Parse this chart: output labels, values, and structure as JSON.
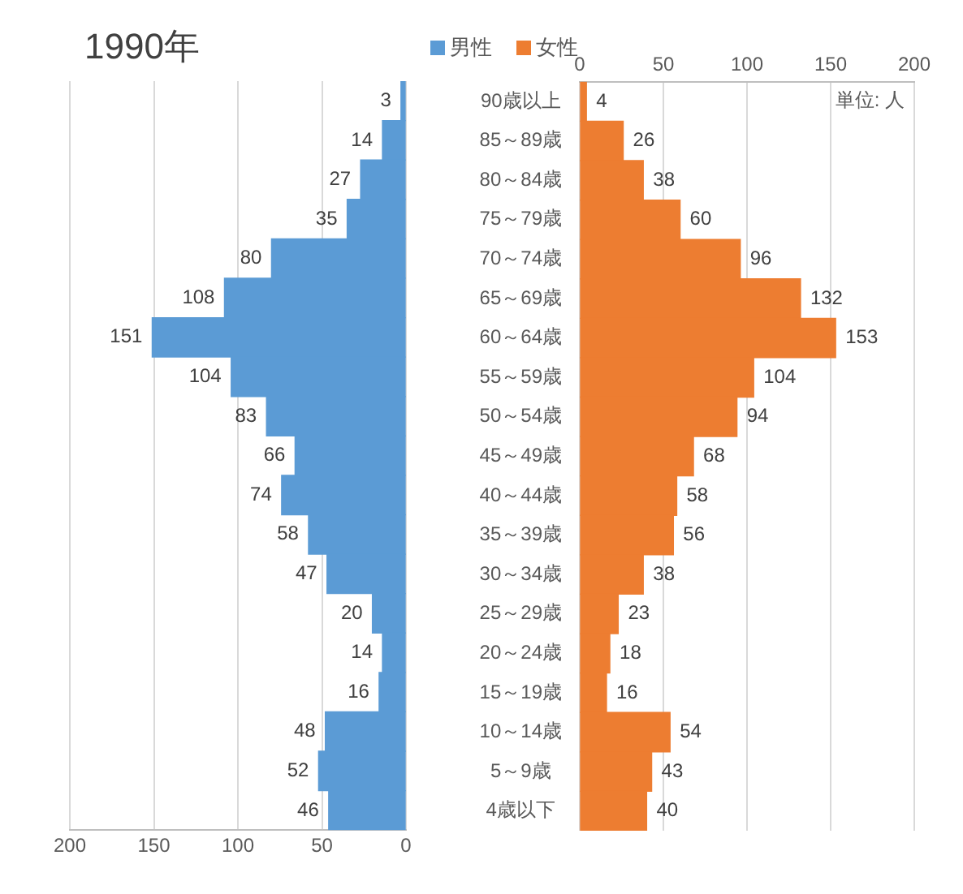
{
  "chart_data": [
    {
      "type": "bar",
      "orientation": "horizontal",
      "title": "1990年",
      "categories": [
        null,
        null,
        null,
        null,
        null,
        null,
        null,
        null,
        null,
        null,
        null,
        null,
        null,
        null,
        null,
        null,
        null,
        null,
        null
      ],
      "series": [
        {
          "name": "男性",
          "color": "#5b9bd5",
          "values": [
            3,
            14,
            27,
            35,
            80,
            108,
            151,
            104,
            83,
            66,
            74,
            58,
            47,
            20,
            14,
            16,
            48,
            52,
            46
          ]
        }
      ],
      "xlim": [
        200,
        0
      ],
      "xticks": [
        200,
        150,
        100,
        50,
        0
      ],
      "grid": "x",
      "legend": "top",
      "tick_labels": "x",
      "data_labels": true
    },
    {
      "type": "bar",
      "orientation": "horizontal",
      "annotations": [
        "単位: 人"
      ],
      "categories": [
        "90歳以上",
        "85～89歳",
        "80～84歳",
        "75～79歳",
        "70～74歳",
        "65～69歳",
        "60～64歳",
        "55～59歳",
        "50～54歳",
        "45～49歳",
        "40～44歳",
        "35～39歳",
        "30～34歳",
        "25～29歳",
        "20～24歳",
        "15～19歳",
        "10～14歳",
        "5～9歳",
        "4歳以下"
      ],
      "series": [
        {
          "name": "女性",
          "color": "#ed7d31",
          "values": [
            4,
            26,
            38,
            60,
            96,
            132,
            153,
            104,
            94,
            68,
            58,
            56,
            38,
            23,
            18,
            16,
            54,
            43,
            40
          ]
        }
      ],
      "x2lim": [
        0,
        200
      ],
      "x2ticks": [
        0,
        50,
        100,
        150,
        200
      ],
      "grid": "x",
      "legend": "top",
      "data_labels": true
    }
  ]
}
